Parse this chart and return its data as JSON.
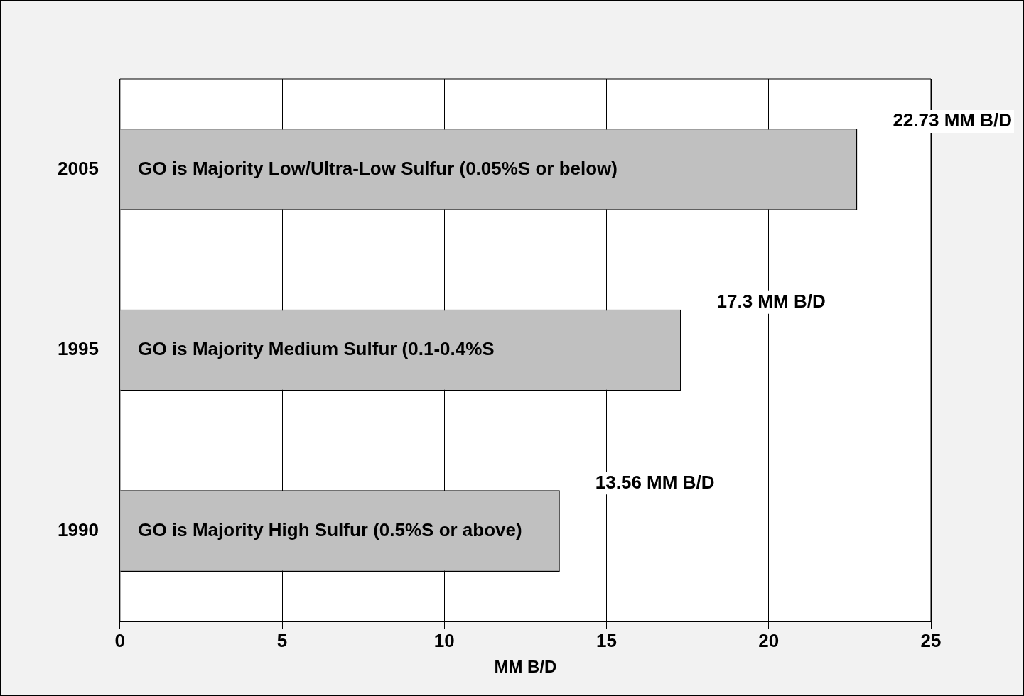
{
  "chart_data": {
    "type": "bar",
    "orientation": "horizontal",
    "xlabel": "MM B/D",
    "categories": [
      "2005",
      "1995",
      "1990"
    ],
    "values": [
      22.73,
      17.3,
      13.56
    ],
    "value_labels": [
      "22.73 MM B/D",
      "17.3 MM B/D",
      "13.56 MM B/D"
    ],
    "color": "#c0c0c0",
    "xlim": [
      0,
      25
    ],
    "xticks": [
      0,
      5,
      10,
      15,
      20,
      25
    ],
    "grid": "x",
    "legend": false,
    "annotations": [
      "GO is Majority Low/Ultra-Low Sulfur (0.05%S or below)",
      "GO is Majority Medium Sulfur (0.1-0.4%S",
      "GO is Majority High Sulfur (0.5%S or above)"
    ]
  }
}
